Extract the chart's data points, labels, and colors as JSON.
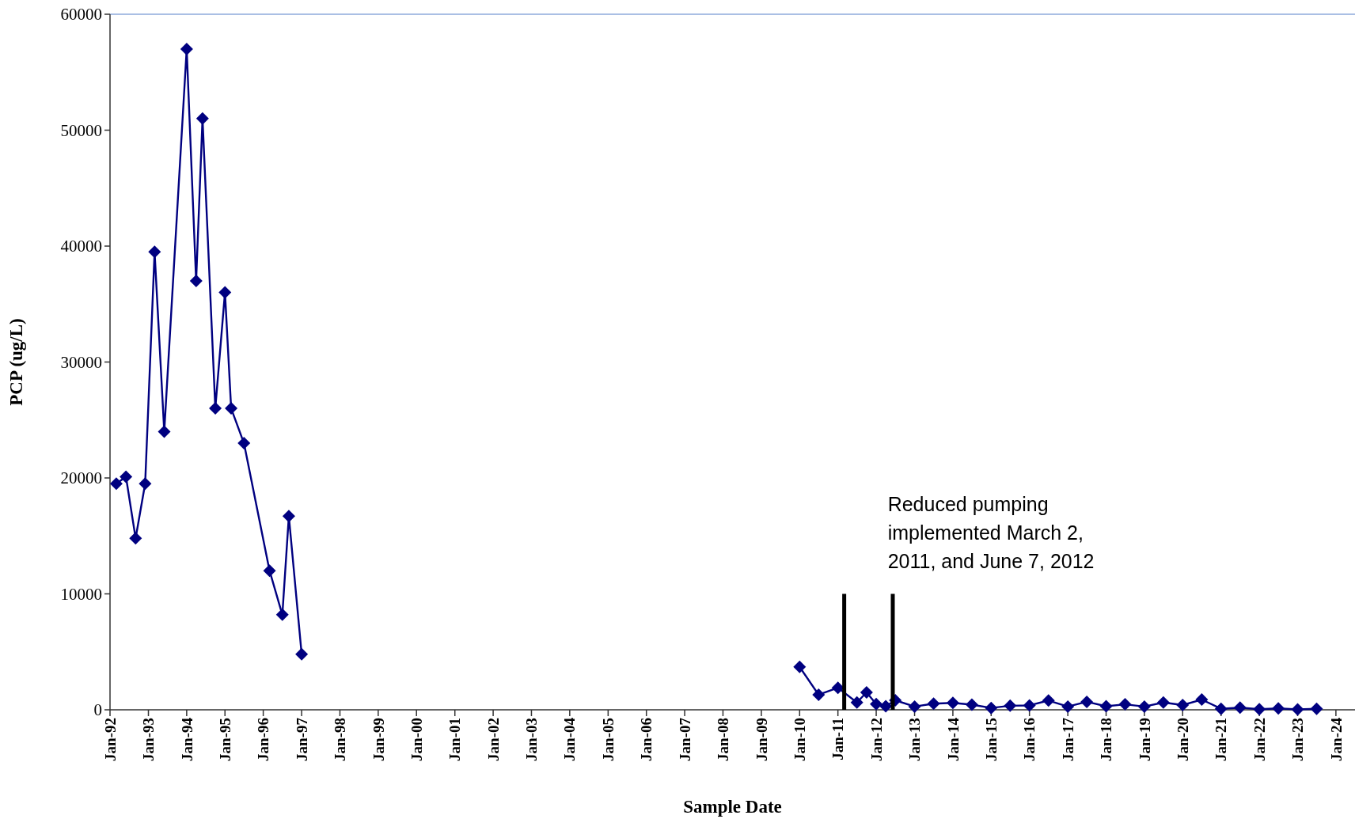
{
  "chart_data": {
    "type": "line",
    "xlabel": "Sample Date",
    "ylabel": "PCP (ug/L)",
    "xlim": [
      "1992-01",
      "2024-07"
    ],
    "ylim": [
      0,
      60000
    ],
    "yticks": [
      0,
      10000,
      20000,
      30000,
      40000,
      50000,
      60000
    ],
    "xticks": [
      {
        "value": "1992-01",
        "label": "Jan-92"
      },
      {
        "value": "1993-01",
        "label": "Jan-93"
      },
      {
        "value": "1994-01",
        "label": "Jan-94"
      },
      {
        "value": "1995-01",
        "label": "Jan-95"
      },
      {
        "value": "1996-01",
        "label": "Jan-96"
      },
      {
        "value": "1997-01",
        "label": "Jan-97"
      },
      {
        "value": "1998-01",
        "label": "Jan-98"
      },
      {
        "value": "1999-01",
        "label": "Jan-99"
      },
      {
        "value": "2000-01",
        "label": "Jan-00"
      },
      {
        "value": "2001-01",
        "label": "Jan-01"
      },
      {
        "value": "2002-01",
        "label": "Jan-02"
      },
      {
        "value": "2003-01",
        "label": "Jan-03"
      },
      {
        "value": "2004-01",
        "label": "Jan-04"
      },
      {
        "value": "2005-01",
        "label": "Jan-05"
      },
      {
        "value": "2006-01",
        "label": "Jan-06"
      },
      {
        "value": "2007-01",
        "label": "Jan-07"
      },
      {
        "value": "2008-01",
        "label": "Jan-08"
      },
      {
        "value": "2009-01",
        "label": "Jan-09"
      },
      {
        "value": "2010-01",
        "label": "Jan-10"
      },
      {
        "value": "2011-01",
        "label": "Jan-11"
      },
      {
        "value": "2012-01",
        "label": "Jan-12"
      },
      {
        "value": "2013-01",
        "label": "Jan-13"
      },
      {
        "value": "2014-01",
        "label": "Jan-14"
      },
      {
        "value": "2015-01",
        "label": "Jan-15"
      },
      {
        "value": "2016-01",
        "label": "Jan-16"
      },
      {
        "value": "2017-01",
        "label": "Jan-17"
      },
      {
        "value": "2018-01",
        "label": "Jan-18"
      },
      {
        "value": "2019-01",
        "label": "Jan-19"
      },
      {
        "value": "2020-01",
        "label": "Jan-20"
      },
      {
        "value": "2021-01",
        "label": "Jan-21"
      },
      {
        "value": "2022-01",
        "label": "Jan-22"
      },
      {
        "value": "2023-01",
        "label": "Jan-23"
      },
      {
        "value": "2024-01",
        "label": "Jan-24"
      }
    ],
    "x": [
      "1992-03",
      "1992-06",
      "1992-09",
      "1992-12",
      "1993-03",
      "1993-06",
      "1994-01",
      "1994-04",
      "1994-06",
      "1994-10",
      "1995-01",
      "1995-03",
      "1995-07",
      "1996-03",
      "1996-07",
      "1996-09",
      "1997-01",
      "2003-07",
      "2010-01",
      "2010-07",
      "2011-01",
      "2011-07",
      "2011-10",
      "2012-01",
      "2012-04",
      "2012-07",
      "2013-01",
      "2013-07",
      "2014-01",
      "2014-07",
      "2015-01",
      "2015-07",
      "2016-01",
      "2016-07",
      "2017-01",
      "2017-07",
      "2018-01",
      "2018-07",
      "2019-01",
      "2019-07",
      "2020-01",
      "2020-07",
      "2021-01",
      "2021-07",
      "2022-01",
      "2022-07",
      "2023-01",
      "2023-07"
    ],
    "series": [
      {
        "color": "#000080",
        "values": [
          19500,
          20100,
          14800,
          19500,
          39500,
          24000,
          57000,
          37000,
          51000,
          26000,
          36000,
          26000,
          23000,
          12000,
          8200,
          16700,
          4800,
          null,
          3700,
          1300,
          1900,
          630,
          1500,
          500,
          300,
          820,
          280,
          530,
          600,
          440,
          160,
          350,
          380,
          800,
          280,
          690,
          310,
          470,
          280,
          630,
          410,
          880,
          90,
          190,
          50,
          120,
          30,
          90
        ]
      }
    ],
    "marker": "diamond",
    "line_style": "solid",
    "grid": false,
    "ref_lines": [
      {
        "axis": "x",
        "value": "2011-03-02",
        "color": "#000000"
      },
      {
        "axis": "x",
        "value": "2012-06-07",
        "color": "#000000"
      }
    ],
    "annotations": [
      "Reduced pumping implemented March 2, 2011, and June 7, 2012"
    ]
  }
}
